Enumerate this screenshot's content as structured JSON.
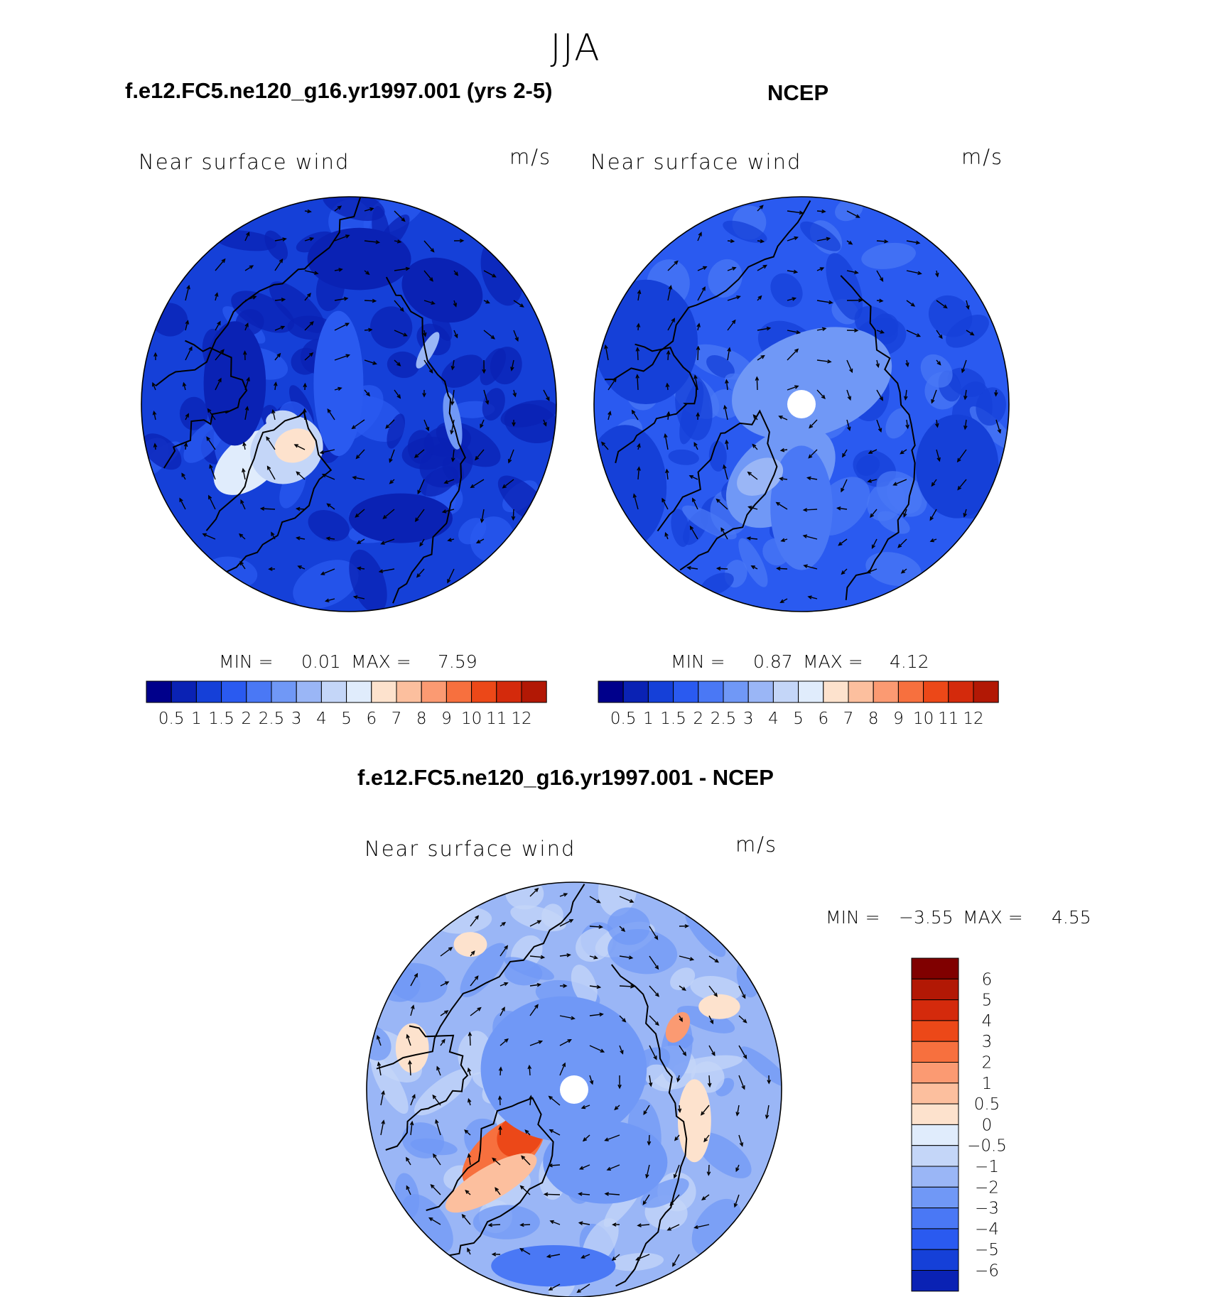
{
  "season": "JJA",
  "panels": [
    {
      "title": "f.e12.FC5.ne120_g16.yr1997.001 (yrs 2-5)",
      "variable": "Near surface wind",
      "units": "m/s",
      "min_label": "MIN =",
      "min_value": "0.01",
      "max_label": "MAX =",
      "max_value": "7.59"
    },
    {
      "title": "NCEP",
      "variable": "Near surface wind",
      "units": "m/s",
      "min_label": "MIN =",
      "min_value": "0.87",
      "max_label": "MAX =",
      "max_value": "4.12"
    },
    {
      "title": "f.e12.FC5.ne120_g16.yr1997.001 - NCEP",
      "variable": "Near surface wind",
      "units": "m/s",
      "min_label": "MIN =",
      "min_value": "−3.55",
      "max_label": "MAX =",
      "max_value": "4.55"
    }
  ],
  "chart_data": [
    {
      "type": "heatmap",
      "projection": "north polar stereographic",
      "title": "f.e12.FC5.ne120_g16.yr1997.001 (yrs 2-5)",
      "quantity": "Near surface wind speed with wind vectors",
      "units": "m/s",
      "min": 0.01,
      "max": 7.59,
      "colorbar_levels": [
        "0.5",
        "1",
        "1.5",
        "2",
        "2.5",
        "3",
        "4",
        "5",
        "6",
        "7",
        "8",
        "9",
        "10",
        "11",
        "12"
      ],
      "colorbar_orientation": "horizontal"
    },
    {
      "type": "heatmap",
      "projection": "north polar stereographic",
      "title": "NCEP",
      "quantity": "Near surface wind speed with wind vectors",
      "units": "m/s",
      "min": 0.87,
      "max": 4.12,
      "colorbar_levels": [
        "0.5",
        "1",
        "1.5",
        "2",
        "2.5",
        "3",
        "4",
        "5",
        "6",
        "7",
        "8",
        "9",
        "10",
        "11",
        "12"
      ],
      "colorbar_orientation": "horizontal"
    },
    {
      "type": "heatmap",
      "projection": "north polar stereographic",
      "title": "f.e12.FC5.ne120_g16.yr1997.001 - NCEP",
      "quantity": "Near surface wind speed difference with wind vectors",
      "units": "m/s",
      "min": -3.55,
      "max": 4.55,
      "colorbar_levels": [
        "6",
        "5",
        "4",
        "3",
        "2",
        "1",
        "0.5",
        "0",
        "−0.5",
        "−1",
        "−2",
        "−3",
        "−4",
        "−5",
        "−6"
      ],
      "colorbar_orientation": "vertical"
    }
  ],
  "colors": {
    "scale": [
      "#00008b",
      "#0a22b4",
      "#1540d8",
      "#2a5af0",
      "#4a78f5",
      "#7098f6",
      "#9ab6f6",
      "#c4d6f8",
      "#e0ecfc",
      "#fde2cd",
      "#fcbf9e",
      "#fb9a72",
      "#f7703e",
      "#ec4818",
      "#d42a0c",
      "#b21805",
      "#800000"
    ],
    "land_outline": "#000000"
  }
}
